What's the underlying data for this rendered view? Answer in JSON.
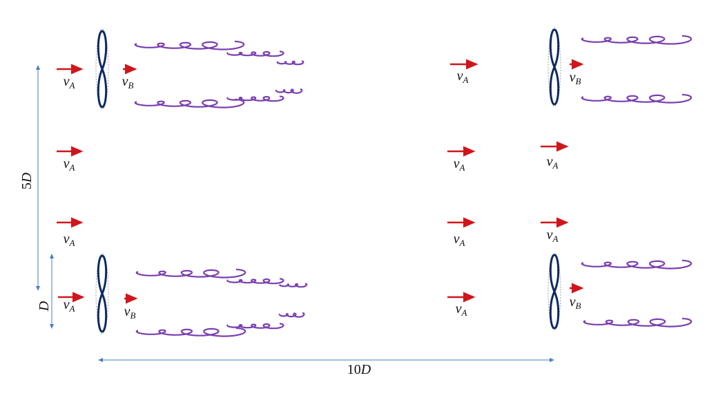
{
  "velocity_labels": [
    {
      "symbol": "v",
      "subscript": "A"
    },
    {
      "symbol": "v",
      "subscript": "B"
    },
    {
      "symbol": "v",
      "subscript": "A"
    },
    {
      "symbol": "v",
      "subscript": "A"
    },
    {
      "symbol": "v",
      "subscript": "A"
    },
    {
      "symbol": "v",
      "subscript": "B"
    },
    {
      "symbol": "v",
      "subscript": "A"
    },
    {
      "symbol": "v",
      "subscript": "A"
    },
    {
      "symbol": "v",
      "subscript": "A"
    },
    {
      "symbol": "v",
      "subscript": "A"
    },
    {
      "symbol": "v",
      "subscript": "B"
    },
    {
      "symbol": "v",
      "subscript": "A"
    },
    {
      "symbol": "v",
      "subscript": "A"
    },
    {
      "symbol": "v",
      "subscript": "B"
    }
  ],
  "dimensions": [
    {
      "coefficient": "5",
      "symbol": "D"
    },
    {
      "symbol": "D"
    },
    {
      "coefficient": "10",
      "symbol": "D"
    }
  ]
}
